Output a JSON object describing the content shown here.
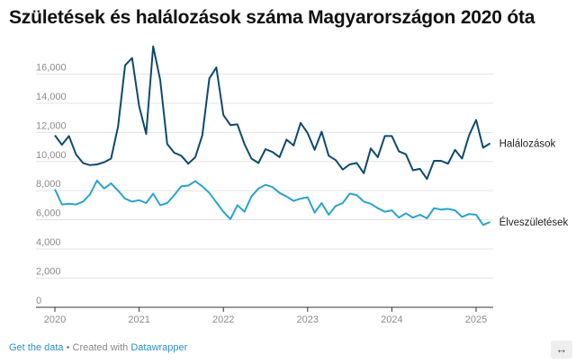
{
  "title": "Születések és halálozások száma Magyarországon 2020 óta",
  "footer": {
    "get_data": "Get the data",
    "separator": " • Created with ",
    "created_with": "Datawrapper"
  },
  "expand_icon": "expand-arrows-icon",
  "chart_data": {
    "type": "line",
    "x_unit": "month",
    "x_start": "2020-01",
    "x_ticks": [
      "2020",
      "2021",
      "2022",
      "2023",
      "2024",
      "2025"
    ],
    "y_ticks": [
      "0",
      "2,000",
      "4,000",
      "6,000",
      "8,000",
      "10,000",
      "12,000",
      "14,000",
      "16,000"
    ],
    "ylim": [
      0,
      18000
    ],
    "grid": true,
    "series": [
      {
        "name": "Halálozások",
        "color": "#0d4a6e",
        "values": [
          11800,
          11150,
          11750,
          10500,
          9900,
          9750,
          9800,
          9950,
          10200,
          12400,
          16600,
          17100,
          13800,
          11900,
          17900,
          15600,
          11200,
          10600,
          10400,
          9850,
          10300,
          11800,
          15700,
          16450,
          13200,
          12500,
          12550,
          11200,
          10200,
          9900,
          10850,
          10650,
          10300,
          11500,
          11100,
          12650,
          11950,
          10800,
          12050,
          10400,
          10100,
          9450,
          9800,
          9900,
          9200,
          10900,
          10300,
          11750,
          11750,
          10700,
          10500,
          9400,
          9500,
          8800,
          10050,
          10050,
          9850,
          10800,
          10200,
          11800,
          12850,
          10950,
          11250
        ]
      },
      {
        "name": "Élveszületések",
        "color": "#2aa3cf",
        "values": [
          8100,
          7050,
          7100,
          7050,
          7250,
          7750,
          8700,
          8150,
          8500,
          8000,
          7450,
          7250,
          7350,
          7150,
          7800,
          7000,
          7150,
          7700,
          8300,
          8350,
          8650,
          8300,
          7850,
          7200,
          6550,
          6050,
          7000,
          6550,
          7600,
          8150,
          8400,
          8250,
          7850,
          7600,
          7300,
          7450,
          7550,
          6500,
          7150,
          6350,
          6950,
          7150,
          7800,
          7700,
          7250,
          7100,
          6800,
          6550,
          6650,
          6150,
          6450,
          6150,
          6350,
          6100,
          6800,
          6700,
          6750,
          6650,
          6200,
          6400,
          6350,
          5650,
          5850
        ]
      }
    ]
  }
}
